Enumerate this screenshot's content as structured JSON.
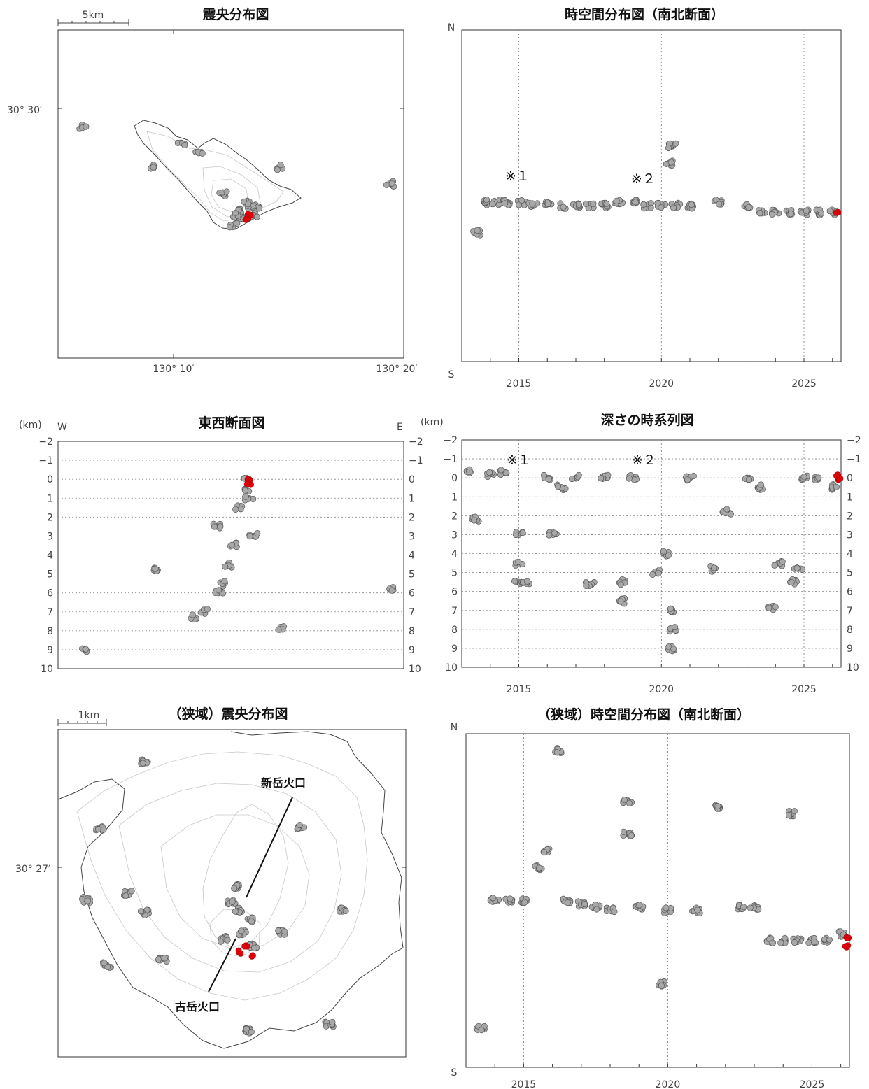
{
  "chart_data": [
    {
      "id": "epicenter-wide",
      "type": "scatter",
      "title": "震央分布図",
      "scale_label": "5km",
      "lat_labels": [
        "30° 30′"
      ],
      "lon_labels": [
        "130° 10′",
        "130° 20′"
      ],
      "series": [
        {
          "color": "#a8a8a8",
          "points": [
            [
              130.077,
              30.503
            ],
            [
              130.135,
              30.483
            ],
            [
              130.16,
              30.495
            ],
            [
              130.175,
              30.49
            ],
            [
              130.196,
              30.47
            ],
            [
              130.21,
              30.462
            ],
            [
              130.212,
              30.458
            ],
            [
              130.215,
              30.466
            ],
            [
              130.22,
              30.464
            ],
            [
              130.222,
              30.46
            ],
            [
              130.225,
              30.463
            ],
            [
              130.205,
              30.455
            ],
            [
              130.208,
              30.46
            ],
            [
              130.245,
              30.483
            ],
            [
              130.338,
              30.475
            ]
          ]
        },
        {
          "color": "#e0000a",
          "points": [
            [
              130.216,
              30.458
            ],
            [
              130.218,
              30.46
            ]
          ]
        }
      ]
    },
    {
      "id": "spacetime-ns",
      "type": "scatter",
      "title": "時空間分布図（南北断面）",
      "y_top_label": "N",
      "y_bottom_label": "S",
      "x_ticks": [
        "2015",
        "2020",
        "2025"
      ],
      "annotations": [
        "※１",
        "※２"
      ],
      "series": [
        {
          "color": "#a8a8a8",
          "points": [
            [
              2013.5,
              0.61
            ],
            [
              2013.8,
              0.52
            ],
            [
              2014.2,
              0.52
            ],
            [
              2014.6,
              0.52
            ],
            [
              2015.1,
              0.52
            ],
            [
              2015.5,
              0.53
            ],
            [
              2016.0,
              0.52
            ],
            [
              2016.5,
              0.53
            ],
            [
              2017.0,
              0.53
            ],
            [
              2017.5,
              0.53
            ],
            [
              2018.0,
              0.53
            ],
            [
              2018.5,
              0.52
            ],
            [
              2019.0,
              0.52
            ],
            [
              2019.5,
              0.53
            ],
            [
              2020.0,
              0.53
            ],
            [
              2020.3,
              0.4
            ],
            [
              2020.4,
              0.35
            ],
            [
              2020.5,
              0.53
            ],
            [
              2021.0,
              0.53
            ],
            [
              2022.0,
              0.52
            ],
            [
              2023.0,
              0.53
            ],
            [
              2023.5,
              0.55
            ],
            [
              2024.0,
              0.55
            ],
            [
              2024.5,
              0.55
            ],
            [
              2025.0,
              0.55
            ],
            [
              2025.5,
              0.55
            ],
            [
              2026.0,
              0.55
            ]
          ]
        },
        {
          "color": "#e0000a",
          "points": [
            [
              2026.2,
              0.55
            ]
          ]
        }
      ]
    },
    {
      "id": "ew-section",
      "type": "scatter",
      "title": "東西断面図",
      "unit_label": "(km)",
      "left_letter": "W",
      "right_letter": "E",
      "y_ticks": [
        "−2",
        "−1",
        "0",
        "1",
        "2",
        "3",
        "4",
        "5",
        "6",
        "7",
        "8",
        "9",
        "10"
      ],
      "ylim": [
        -2,
        10
      ],
      "series": [
        {
          "color": "#a8a8a8",
          "points": [
            [
              130.217,
              0.0
            ],
            [
              130.215,
              0.5
            ],
            [
              130.218,
              1.0
            ],
            [
              130.21,
              1.5
            ],
            [
              130.19,
              2.5
            ],
            [
              130.205,
              3.5
            ],
            [
              130.2,
              4.5
            ],
            [
              130.196,
              5.5
            ],
            [
              130.192,
              6.0
            ],
            [
              130.18,
              7.0
            ],
            [
              130.17,
              7.3
            ],
            [
              130.14,
              4.8
            ],
            [
              130.078,
              9.0
            ],
            [
              130.245,
              7.8
            ],
            [
              130.338,
              5.8
            ],
            [
              130.222,
              3.0
            ]
          ]
        },
        {
          "color": "#e0000a",
          "points": [
            [
              130.217,
              0.0
            ],
            [
              130.218,
              0.2
            ]
          ]
        }
      ]
    },
    {
      "id": "depth-time",
      "type": "scatter",
      "title": "深さの時系列図",
      "unit_label": "(km)",
      "x_ticks": [
        "2015",
        "2020",
        "2025"
      ],
      "y_ticks": [
        "−2",
        "−1",
        "0",
        "1",
        "2",
        "3",
        "4",
        "5",
        "6",
        "7",
        "8",
        "9",
        "10"
      ],
      "ylim": [
        -2,
        10
      ],
      "annotations": [
        "※１",
        "※２"
      ],
      "series": [
        {
          "color": "#a8a8a8",
          "points": [
            [
              2013.3,
              -0.3
            ],
            [
              2013.5,
              2.2
            ],
            [
              2014.0,
              -0.2
            ],
            [
              2014.5,
              -0.3
            ],
            [
              2015.0,
              3.0
            ],
            [
              2015.0,
              4.5
            ],
            [
              2015.0,
              5.5
            ],
            [
              2015.3,
              5.5
            ],
            [
              2016.0,
              0.0
            ],
            [
              2016.2,
              3.0
            ],
            [
              2016.5,
              0.5
            ],
            [
              2017.0,
              0.0
            ],
            [
              2017.5,
              5.6
            ],
            [
              2018.0,
              0.0
            ],
            [
              2018.6,
              5.5
            ],
            [
              2018.6,
              6.5
            ],
            [
              2019.0,
              0.0
            ],
            [
              2019.8,
              5.0
            ],
            [
              2020.2,
              4.0
            ],
            [
              2020.3,
              7.0
            ],
            [
              2020.4,
              8.0
            ],
            [
              2020.4,
              9.0
            ],
            [
              2021.0,
              0.0
            ],
            [
              2021.8,
              4.8
            ],
            [
              2022.3,
              1.8
            ],
            [
              2023.0,
              0.0
            ],
            [
              2023.5,
              0.5
            ],
            [
              2023.9,
              6.9
            ],
            [
              2024.1,
              4.5
            ],
            [
              2024.6,
              5.5
            ],
            [
              2024.8,
              4.8
            ],
            [
              2025.0,
              0.0
            ],
            [
              2025.5,
              0.0
            ],
            [
              2026.0,
              0.5
            ]
          ]
        },
        {
          "color": "#e0000a",
          "points": [
            [
              2026.2,
              -0.1
            ],
            [
              2026.2,
              0.1
            ]
          ]
        }
      ]
    },
    {
      "id": "epicenter-narrow",
      "type": "scatter",
      "title": "（狭域）震央分布図",
      "scale_label": "1km",
      "lat_labels": [
        "30° 27′"
      ],
      "crater_labels": [
        "新岳火口",
        "古岳火口"
      ],
      "series": [
        {
          "color": "#a8a8a8",
          "points": [
            [
              0.52,
              0.55
            ],
            [
              0.55,
              0.58
            ],
            [
              0.5,
              0.53
            ],
            [
              0.53,
              0.62
            ],
            [
              0.51,
              0.48
            ],
            [
              0.56,
              0.66
            ],
            [
              0.48,
              0.64
            ],
            [
              0.3,
              0.7
            ],
            [
              0.25,
              0.56
            ],
            [
              0.2,
              0.5
            ],
            [
              0.12,
              0.3
            ],
            [
              0.14,
              0.72
            ],
            [
              0.08,
              0.52
            ],
            [
              0.25,
              0.1
            ],
            [
              0.55,
              0.92
            ],
            [
              0.82,
              0.55
            ],
            [
              0.78,
              0.9
            ],
            [
              0.64,
              0.62
            ],
            [
              0.7,
              0.3
            ]
          ]
        },
        {
          "color": "#e0000a",
          "points": [
            [
              0.54,
              0.66
            ],
            [
              0.52,
              0.68
            ],
            [
              0.56,
              0.69
            ]
          ]
        }
      ]
    },
    {
      "id": "spacetime-ns-narrow",
      "type": "scatter",
      "title": "（狭域）時空間分布図（南北断面）",
      "y_top_label": "N",
      "y_bottom_label": "S",
      "x_ticks": [
        "2015",
        "2020",
        "2025"
      ],
      "series": [
        {
          "color": "#a8a8a8",
          "points": [
            [
              2013.5,
              0.88
            ],
            [
              2014.0,
              0.5
            ],
            [
              2014.5,
              0.5
            ],
            [
              2015.0,
              0.5
            ],
            [
              2015.5,
              0.4
            ],
            [
              2015.8,
              0.35
            ],
            [
              2016.2,
              0.05
            ],
            [
              2016.5,
              0.5
            ],
            [
              2017.0,
              0.51
            ],
            [
              2017.5,
              0.52
            ],
            [
              2018.0,
              0.53
            ],
            [
              2018.6,
              0.2
            ],
            [
              2018.6,
              0.3
            ],
            [
              2019.0,
              0.52
            ],
            [
              2019.8,
              0.75
            ],
            [
              2020.0,
              0.53
            ],
            [
              2021.0,
              0.53
            ],
            [
              2021.8,
              0.22
            ],
            [
              2022.5,
              0.52
            ],
            [
              2023.0,
              0.52
            ],
            [
              2023.5,
              0.62
            ],
            [
              2024.0,
              0.62
            ],
            [
              2024.3,
              0.24
            ],
            [
              2024.5,
              0.62
            ],
            [
              2025.0,
              0.62
            ],
            [
              2025.5,
              0.62
            ],
            [
              2026.0,
              0.6
            ]
          ]
        },
        {
          "color": "#e0000a",
          "points": [
            [
              2026.2,
              0.61
            ],
            [
              2026.2,
              0.64
            ]
          ]
        }
      ]
    }
  ]
}
